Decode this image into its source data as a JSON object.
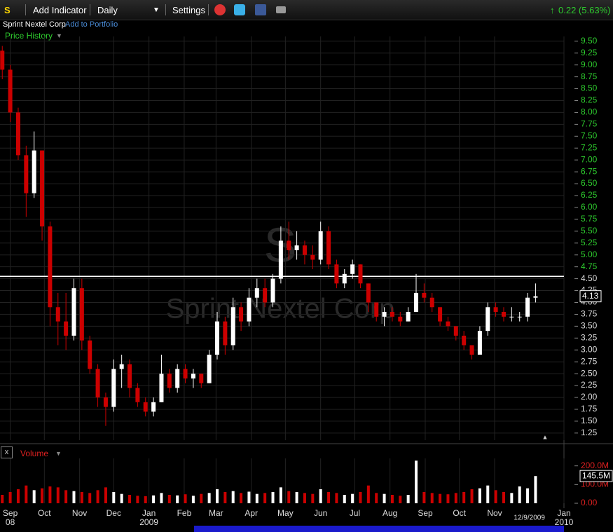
{
  "toolbar": {
    "symbol": "S",
    "add_indicator": "Add Indicator",
    "interval": "Daily",
    "settings": "Settings",
    "change": "0.22 (5.63%)"
  },
  "company": "Sprint Nextel Corp",
  "add_to_portfolio": "Add to Portfolio",
  "panel_title": "Price History",
  "volume_title": "Volume",
  "chart_data": {
    "type": "candlestick",
    "watermark_symbol": "S",
    "watermark_name": "Sprint Nextel Corp",
    "x": [
      -7,
      0,
      7,
      14,
      21,
      28,
      35,
      42,
      49,
      56,
      63,
      70,
      77,
      84,
      91,
      98,
      105,
      112,
      119,
      126,
      133,
      140,
      147,
      154,
      161,
      168,
      175,
      182,
      189,
      196,
      203,
      210,
      217,
      224,
      231,
      238,
      245,
      252,
      259,
      266,
      273,
      280,
      287,
      294,
      301,
      308,
      315,
      322,
      329,
      336,
      343,
      350,
      357,
      364,
      371,
      378,
      385,
      392,
      399,
      406,
      413,
      420,
      427,
      434,
      441,
      448,
      455,
      462
    ],
    "open": [
      9.3,
      8.9,
      8.0,
      7.1,
      6.3,
      7.2,
      5.6,
      3.9,
      3.6,
      3.3,
      4.3,
      3.2,
      2.6,
      2.0,
      1.8,
      2.6,
      2.7,
      2.2,
      1.9,
      1.7,
      1.9,
      2.5,
      2.2,
      2.6,
      2.4,
      2.5,
      2.3,
      2.9,
      3.6,
      3.1,
      3.9,
      3.6,
      4.1,
      4.3,
      4.0,
      4.5,
      5.3,
      5.1,
      5.2,
      5.0,
      4.9,
      5.5,
      4.8,
      4.4,
      4.6,
      4.8,
      4.4,
      4.0,
      3.7,
      3.8,
      3.7,
      3.6,
      3.8,
      4.2,
      4.1,
      3.9,
      3.6,
      3.5,
      3.3,
      3.1,
      2.9,
      3.4,
      3.9,
      3.8,
      3.7,
      3.7,
      3.7,
      4.1
    ],
    "high": [
      9.4,
      9.0,
      8.1,
      7.3,
      7.6,
      7.2,
      5.7,
      4.2,
      4.2,
      4.5,
      4.5,
      3.3,
      2.7,
      2.1,
      2.8,
      2.9,
      2.8,
      2.3,
      2.0,
      2.0,
      2.9,
      2.6,
      2.7,
      2.7,
      2.6,
      2.5,
      3.0,
      3.8,
      3.7,
      4.1,
      4.0,
      4.3,
      4.5,
      4.5,
      4.6,
      5.6,
      5.7,
      5.5,
      5.3,
      5.2,
      5.7,
      5.6,
      4.9,
      4.7,
      4.9,
      4.8,
      4.4,
      4.0,
      3.9,
      3.9,
      3.8,
      3.9,
      4.6,
      4.4,
      4.2,
      3.9,
      3.7,
      3.5,
      3.4,
      3.1,
      3.5,
      4.0,
      4.0,
      3.9,
      3.9,
      3.8,
      4.2,
      4.4
    ],
    "low": [
      8.7,
      7.8,
      7.0,
      5.8,
      6.2,
      5.3,
      3.5,
      3.1,
      3.0,
      3.2,
      3.0,
      2.5,
      1.8,
      1.4,
      1.7,
      2.2,
      2.0,
      1.8,
      1.6,
      1.6,
      1.9,
      2.1,
      2.1,
      2.3,
      2.2,
      2.2,
      2.3,
      2.8,
      2.9,
      3.0,
      3.4,
      3.5,
      3.9,
      3.9,
      3.9,
      4.4,
      4.9,
      4.9,
      4.8,
      4.7,
      4.8,
      4.7,
      4.3,
      4.3,
      4.5,
      4.3,
      3.8,
      3.6,
      3.5,
      3.6,
      3.5,
      3.6,
      3.8,
      4.0,
      3.8,
      3.5,
      3.4,
      3.2,
      3.0,
      2.8,
      2.9,
      3.3,
      3.7,
      3.6,
      3.6,
      3.6,
      3.6,
      4.0
    ],
    "close": [
      8.9,
      8.0,
      7.1,
      6.3,
      7.2,
      5.6,
      3.9,
      3.6,
      3.3,
      4.3,
      3.2,
      2.6,
      2.0,
      1.8,
      2.6,
      2.7,
      2.2,
      1.9,
      1.7,
      1.9,
      2.5,
      2.2,
      2.6,
      2.4,
      2.5,
      2.3,
      2.9,
      3.6,
      3.1,
      3.9,
      3.6,
      4.1,
      4.3,
      4.0,
      4.5,
      5.3,
      5.1,
      5.2,
      5.0,
      4.9,
      5.5,
      4.8,
      4.4,
      4.6,
      4.8,
      4.4,
      4.0,
      3.7,
      3.8,
      3.7,
      3.6,
      3.8,
      4.2,
      4.1,
      3.9,
      3.6,
      3.5,
      3.3,
      3.1,
      2.9,
      3.4,
      3.9,
      3.8,
      3.7,
      3.7,
      3.7,
      4.1,
      4.13
    ],
    "volume": [
      45000000,
      60000000,
      75000000,
      95000000,
      70000000,
      80000000,
      90000000,
      85000000,
      70000000,
      65000000,
      60000000,
      55000000,
      70000000,
      85000000,
      60000000,
      50000000,
      45000000,
      40000000,
      38000000,
      42000000,
      55000000,
      45000000,
      42000000,
      48000000,
      40000000,
      50000000,
      55000000,
      75000000,
      60000000,
      65000000,
      55000000,
      62000000,
      50000000,
      55000000,
      60000000,
      85000000,
      65000000,
      60000000,
      55000000,
      50000000,
      75000000,
      60000000,
      55000000,
      45000000,
      50000000,
      60000000,
      95000000,
      55000000,
      50000000,
      45000000,
      40000000,
      45000000,
      228000000,
      60000000,
      55000000,
      50000000,
      48000000,
      55000000,
      60000000,
      75000000,
      80000000,
      95000000,
      70000000,
      60000000,
      55000000,
      90000000,
      80000000,
      145500000
    ],
    "last_volume_label": "145.5M",
    "up_color": "#ffffff",
    "down_color": "#cc0000",
    "reference_line": 4.55,
    "xlim": [
      -9,
      487
    ],
    "ylim": [
      1.1,
      9.6
    ],
    "yticks": [
      1.25,
      {
        "value": 1.5,
        "label": "1.50"
      },
      1.75,
      {
        "value": 2,
        "label": "2.00"
      },
      2.25,
      {
        "value": 2.5,
        "label": "2.50"
      },
      2.75,
      {
        "value": 3,
        "label": "3.00"
      },
      3.25,
      {
        "value": 3.5,
        "label": "3.50"
      },
      3.75,
      {
        "value": 4,
        "label": "4.00"
      },
      4.25,
      {
        "value": 4.5,
        "label": "4.50"
      },
      4.75,
      {
        "value": 5,
        "label": "5.00"
      },
      5.25,
      {
        "value": 5.5,
        "label": "5.50"
      },
      5.75,
      {
        "value": 6,
        "label": "6.00"
      },
      6.25,
      {
        "value": 6.5,
        "label": "6.50"
      },
      6.75,
      {
        "value": 7,
        "label": "7.00"
      },
      7.25,
      {
        "value": 7.5,
        "label": "7.50"
      },
      7.75,
      {
        "value": 8,
        "label": "8.00"
      },
      8.25,
      {
        "value": 8.5,
        "label": "8.50"
      },
      8.75,
      {
        "value": 9,
        "label": "9.00"
      },
      9.25,
      {
        "value": 9.5,
        "label": "9.50"
      }
    ],
    "volume_ylim": [
      0,
      240000000
    ],
    "volume_yticks": [
      {
        "value": 0,
        "label": "0.00"
      },
      {
        "value": 100000000,
        "label": "100.0M"
      },
      {
        "value": 200000000,
        "label": "200.0M"
      }
    ],
    "xticks": [
      {
        "value": 0,
        "label": "Sep"
      },
      {
        "value": 30,
        "label": "Oct"
      },
      {
        "value": 61,
        "label": "Nov"
      },
      {
        "value": 91,
        "label": "Dec"
      },
      {
        "value": 122,
        "label": "Jan"
      },
      {
        "value": 153,
        "label": "Feb"
      },
      {
        "value": 181,
        "label": "Mar"
      },
      {
        "value": 212,
        "label": "Apr"
      },
      {
        "value": 242,
        "label": "May"
      },
      {
        "value": 273,
        "label": "Jun"
      },
      {
        "value": 303,
        "label": "Jul"
      },
      {
        "value": 334,
        "label": "Aug"
      },
      {
        "value": 365,
        "label": "Sep"
      },
      {
        "value": 395,
        "label": "Oct"
      },
      {
        "value": 426,
        "label": "Nov"
      },
      {
        "value": 487,
        "label": "Jan"
      }
    ],
    "year_ticks": [
      {
        "value": 0,
        "label": "08"
      },
      {
        "value": 122,
        "label": "2009"
      },
      {
        "value": 487,
        "label": "2010"
      }
    ],
    "cursor_date": {
      "value": 464,
      "label": "12/9/2009"
    },
    "grid": true
  }
}
